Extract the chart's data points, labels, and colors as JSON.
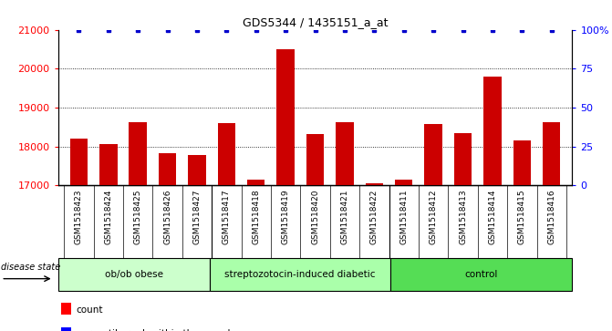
{
  "title": "GDS5344 / 1435151_a_at",
  "samples": [
    "GSM1518423",
    "GSM1518424",
    "GSM1518425",
    "GSM1518426",
    "GSM1518427",
    "GSM1518417",
    "GSM1518418",
    "GSM1518419",
    "GSM1518420",
    "GSM1518421",
    "GSM1518422",
    "GSM1518411",
    "GSM1518412",
    "GSM1518413",
    "GSM1518414",
    "GSM1518415",
    "GSM1518416"
  ],
  "counts": [
    18200,
    18050,
    18620,
    17830,
    17780,
    18600,
    17150,
    20500,
    18320,
    18620,
    17050,
    17150,
    18580,
    18350,
    19800,
    18150,
    18620
  ],
  "percentile_ranks": [
    100,
    100,
    100,
    100,
    100,
    100,
    100,
    100,
    100,
    100,
    100,
    100,
    100,
    100,
    100,
    100,
    100
  ],
  "groups": [
    {
      "label": "ob/ob obese",
      "start": 0,
      "end": 5,
      "color": "#ccffcc"
    },
    {
      "label": "streptozotocin-induced diabetic",
      "start": 5,
      "end": 11,
      "color": "#aaffaa"
    },
    {
      "label": "control",
      "start": 11,
      "end": 17,
      "color": "#55dd55"
    }
  ],
  "bar_color": "#cc0000",
  "dot_color": "#0000cc",
  "ylim_left": [
    17000,
    21000
  ],
  "ylim_right": [
    0,
    100
  ],
  "yticks_left": [
    17000,
    18000,
    19000,
    20000,
    21000
  ],
  "yticks_right": [
    0,
    25,
    50,
    75,
    100
  ],
  "yticklabels_right": [
    "0",
    "25",
    "50",
    "75",
    "100%"
  ],
  "xtick_bg_color": "#d0d0d0",
  "plot_bg_color": "#ffffff",
  "grid_color": "#000000",
  "separator_indices": [
    4.5,
    10.5
  ]
}
